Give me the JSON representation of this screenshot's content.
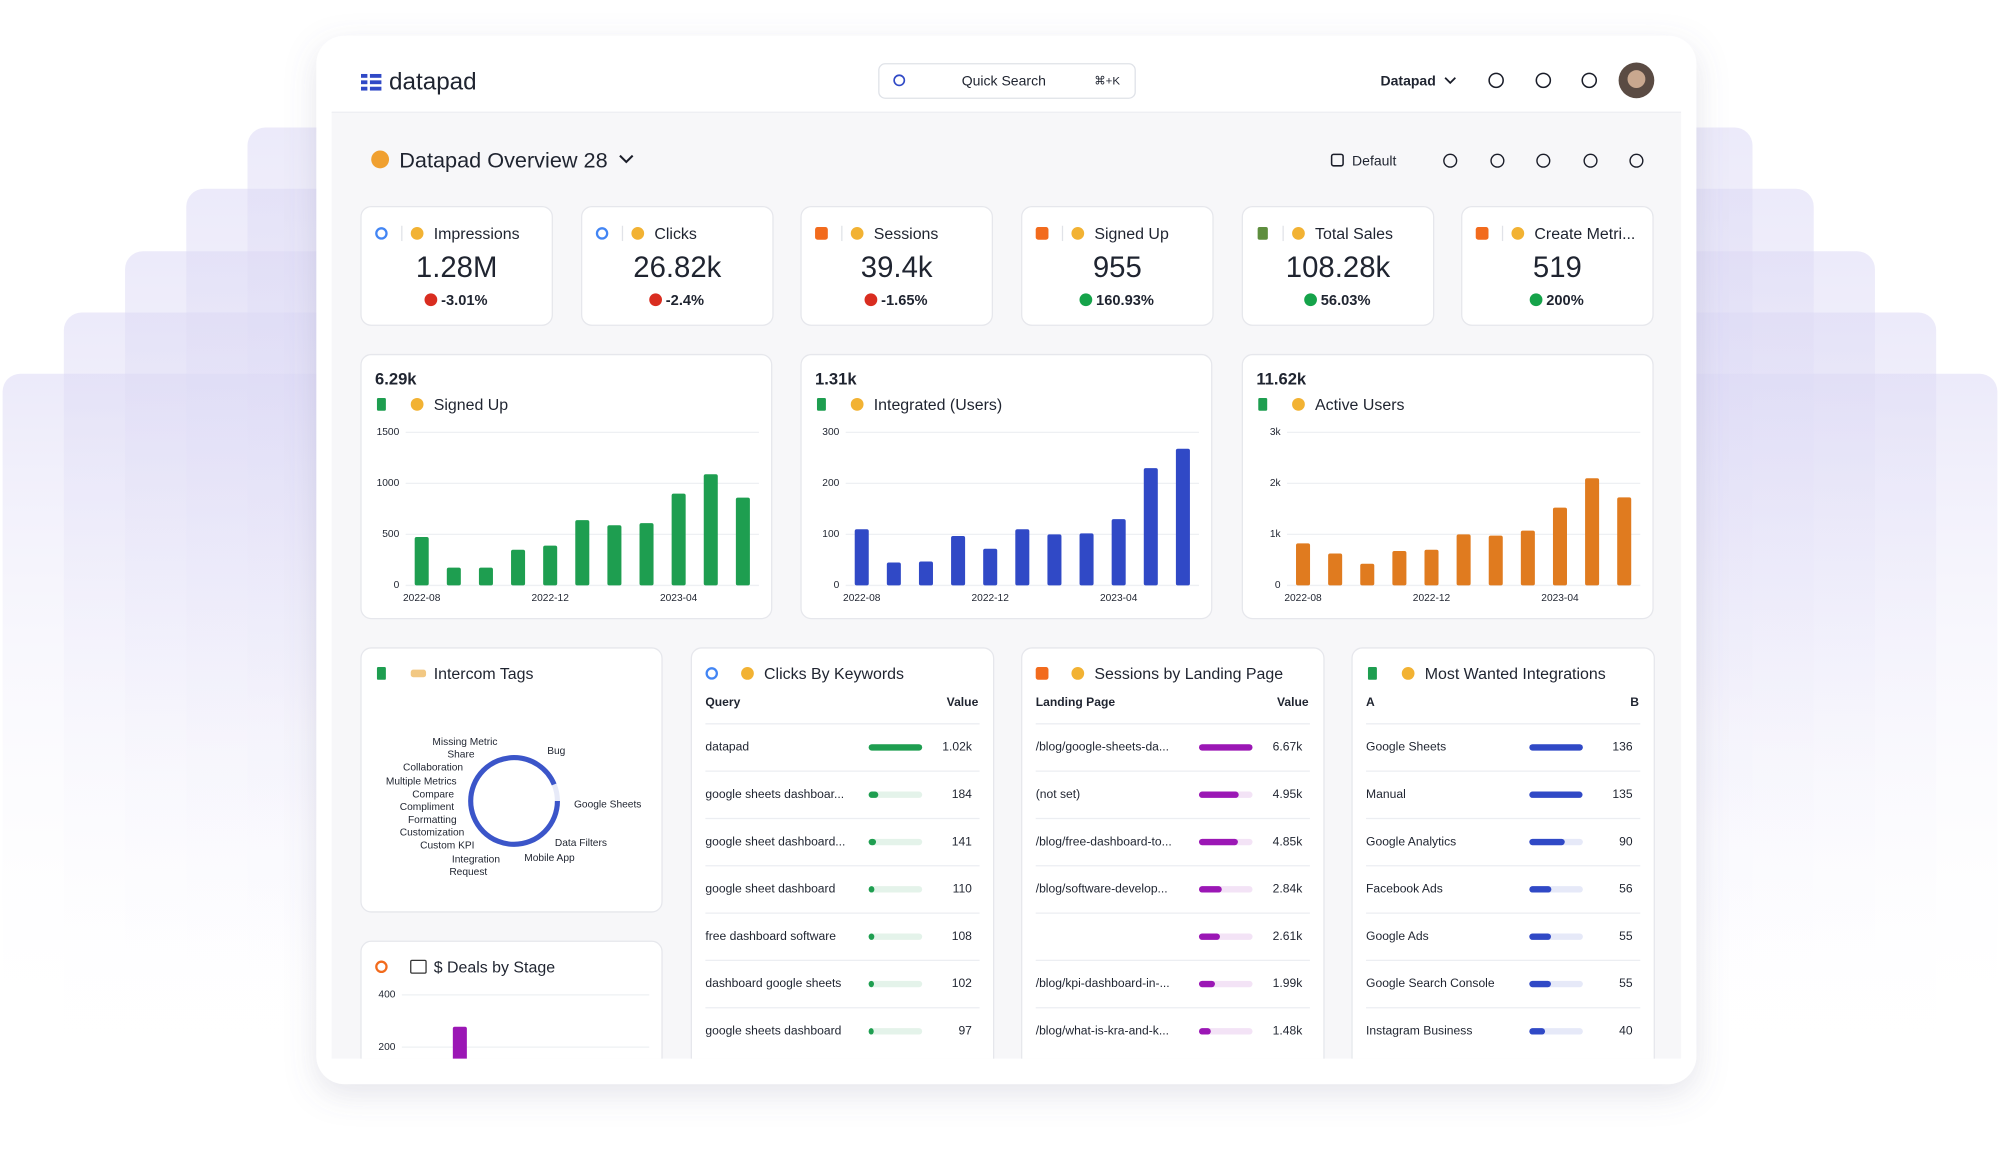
{
  "header": {
    "logo": "datapad",
    "search_placeholder": "Quick Search",
    "search_shortcut": "⌘+K",
    "workspace": "Datapad"
  },
  "dashboard": {
    "title": "Datapad Overview 28",
    "view": "Default"
  },
  "kpis": [
    {
      "label": "Impressions",
      "value": "1.28M",
      "change": "-3.01%"
    },
    {
      "label": "Clicks",
      "value": "26.82k",
      "change": "-2.4%"
    },
    {
      "label": "Sessions",
      "value": "39.4k",
      "change": "-1.65%"
    },
    {
      "label": "Signed Up",
      "value": "955",
      "change": "160.93%"
    },
    {
      "label": "Total Sales",
      "value": "108.28k",
      "change": "56.03%"
    },
    {
      "label": "Create Metri...",
      "value": "519",
      "change": "200%"
    }
  ],
  "charts": [
    {
      "type": "bar",
      "headline": "6.29k",
      "title": "Signed Up",
      "color": "#1e9e50",
      "categories": [
        "2022-08",
        null,
        null,
        null,
        "2022-12",
        null,
        null,
        null,
        "2023-04",
        null,
        null
      ],
      "values": [
        475,
        175,
        175,
        350,
        390,
        640,
        590,
        610,
        900,
        1090,
        860
      ],
      "ylim": [
        0,
        1500
      ],
      "yticks": [
        0,
        500,
        1000,
        1500
      ]
    },
    {
      "type": "bar",
      "headline": "1.31k",
      "title": "Integrated (Users)",
      "color": "#3049c6",
      "categories": [
        "2022-08",
        null,
        null,
        null,
        "2022-12",
        null,
        null,
        null,
        "2023-04",
        null,
        null
      ],
      "values": [
        110,
        45,
        47,
        97,
        72,
        110,
        100,
        102,
        130,
        230,
        268
      ],
      "ylim": [
        0,
        300
      ],
      "yticks": [
        0,
        100,
        200,
        300
      ]
    },
    {
      "type": "bar",
      "headline": "11.62k",
      "title": "Active Users",
      "color": "#e07b1f",
      "categories": [
        "2022-08",
        null,
        null,
        null,
        "2022-12",
        null,
        null,
        null,
        "2023-04",
        null,
        null
      ],
      "values": [
        825,
        625,
        425,
        675,
        700,
        1000,
        975,
        1075,
        1525,
        2100,
        1725
      ],
      "ylim": [
        0,
        3000
      ],
      "yticks": [
        0,
        {
          "value": 1000,
          "label": "1k"
        },
        {
          "value": 2000,
          "label": "2k"
        },
        {
          "value": 3000,
          "label": "3k"
        }
      ]
    }
  ],
  "intercom_tags": {
    "title": "Intercom Tags",
    "labels": [
      "Missing Metric",
      "Share",
      "Collaboration",
      "Multiple Metrics",
      "Compare",
      "Compliment",
      "Formatting",
      "Customization",
      "Custom KPI",
      "Integration",
      "Request",
      "Bug",
      "Google Sheets",
      "Data Filters",
      "Mobile App"
    ]
  },
  "tables": [
    {
      "title": "Clicks By Keywords",
      "columns": [
        "Query",
        "Value"
      ],
      "color": "#1e9e50",
      "rows": [
        "datapad",
        "google sheets dashboar...",
        "google sheet dashboard...",
        "google sheet dashboard",
        "free dashboard software",
        "dashboard google sheets",
        "google sheets dashboard"
      ],
      "values": [
        1020,
        184,
        141,
        110,
        108,
        102,
        97
      ],
      "value_labels": [
        "1.02k",
        "184",
        "141",
        "110",
        "108",
        "102",
        "97"
      ]
    },
    {
      "title": "Sessions by Landing Page",
      "columns": [
        "Landing Page",
        "Value"
      ],
      "color": "#9b17b5",
      "rows": [
        "/blog/google-sheets-da...",
        "(not set)",
        "/blog/free-dashboard-to...",
        "/blog/software-develop...",
        null,
        "/blog/kpi-dashboard-in-...",
        "/blog/what-is-kra-and-k..."
      ],
      "values": [
        6670,
        4950,
        4850,
        2840,
        2610,
        1990,
        1480
      ],
      "value_labels": [
        "6.67k",
        "4.95k",
        "4.85k",
        "2.84k",
        "2.61k",
        "1.99k",
        "1.48k"
      ]
    },
    {
      "title": "Most Wanted Integrations",
      "columns": [
        "A",
        "B"
      ],
      "color": "#3049c6",
      "rows": [
        "Google Sheets",
        "Manual",
        "Google Analytics",
        "Facebook Ads",
        "Google Ads",
        "Google Search Console",
        "Instagram Business"
      ],
      "values": [
        136,
        135,
        90,
        56,
        55,
        55,
        40
      ],
      "value_labels": [
        "136",
        "135",
        "90",
        "56",
        "55",
        "55",
        "40"
      ]
    }
  ],
  "deals": {
    "type": "bar",
    "title": "$ Deals by Stage",
    "color": "#9b17b5",
    "categories": [
      null
    ],
    "values": [
      278
    ],
    "ylim": [
      0,
      400
    ],
    "yticks": [
      200,
      400
    ]
  }
}
